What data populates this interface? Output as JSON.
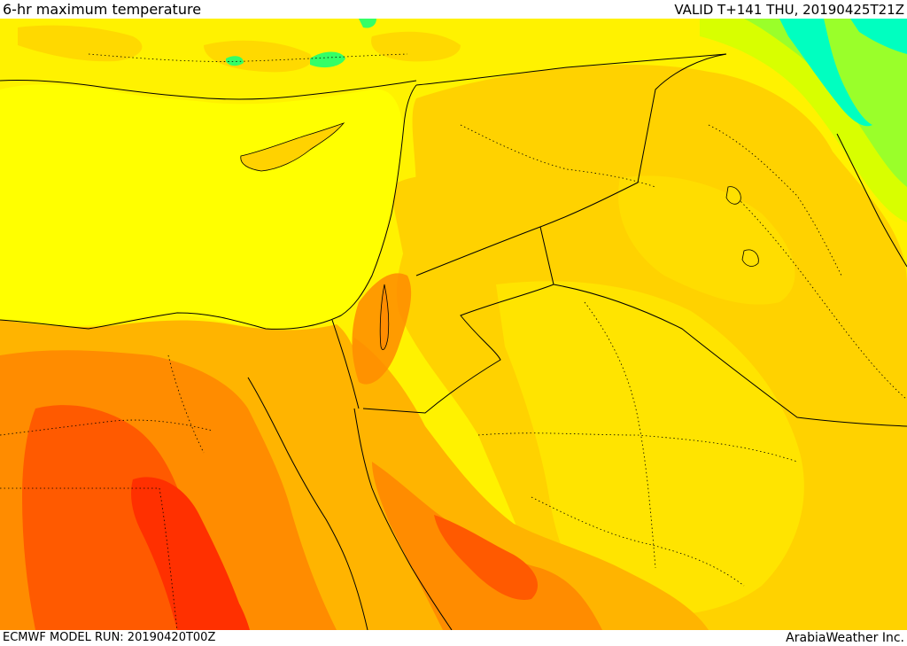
{
  "header": {
    "title": "6-hr maximum temperature",
    "valid": "VALID T+141 THU, 20190425T21Z"
  },
  "footer": {
    "model_run": "ECMWF MODEL RUN: 20190420T00Z",
    "credit": "ArabiaWeather Inc."
  },
  "map": {
    "colors": {
      "sea": "#ffff00",
      "yellow_land": "#fff200",
      "light_orange": "#ffd200",
      "orange": "#ffb400",
      "dark_orange": "#ff8c00",
      "red_orange": "#ff5a00",
      "red": "#ff3000",
      "green": "#7aff3a",
      "cyan": "#00ffc8",
      "border": "#000000"
    }
  }
}
